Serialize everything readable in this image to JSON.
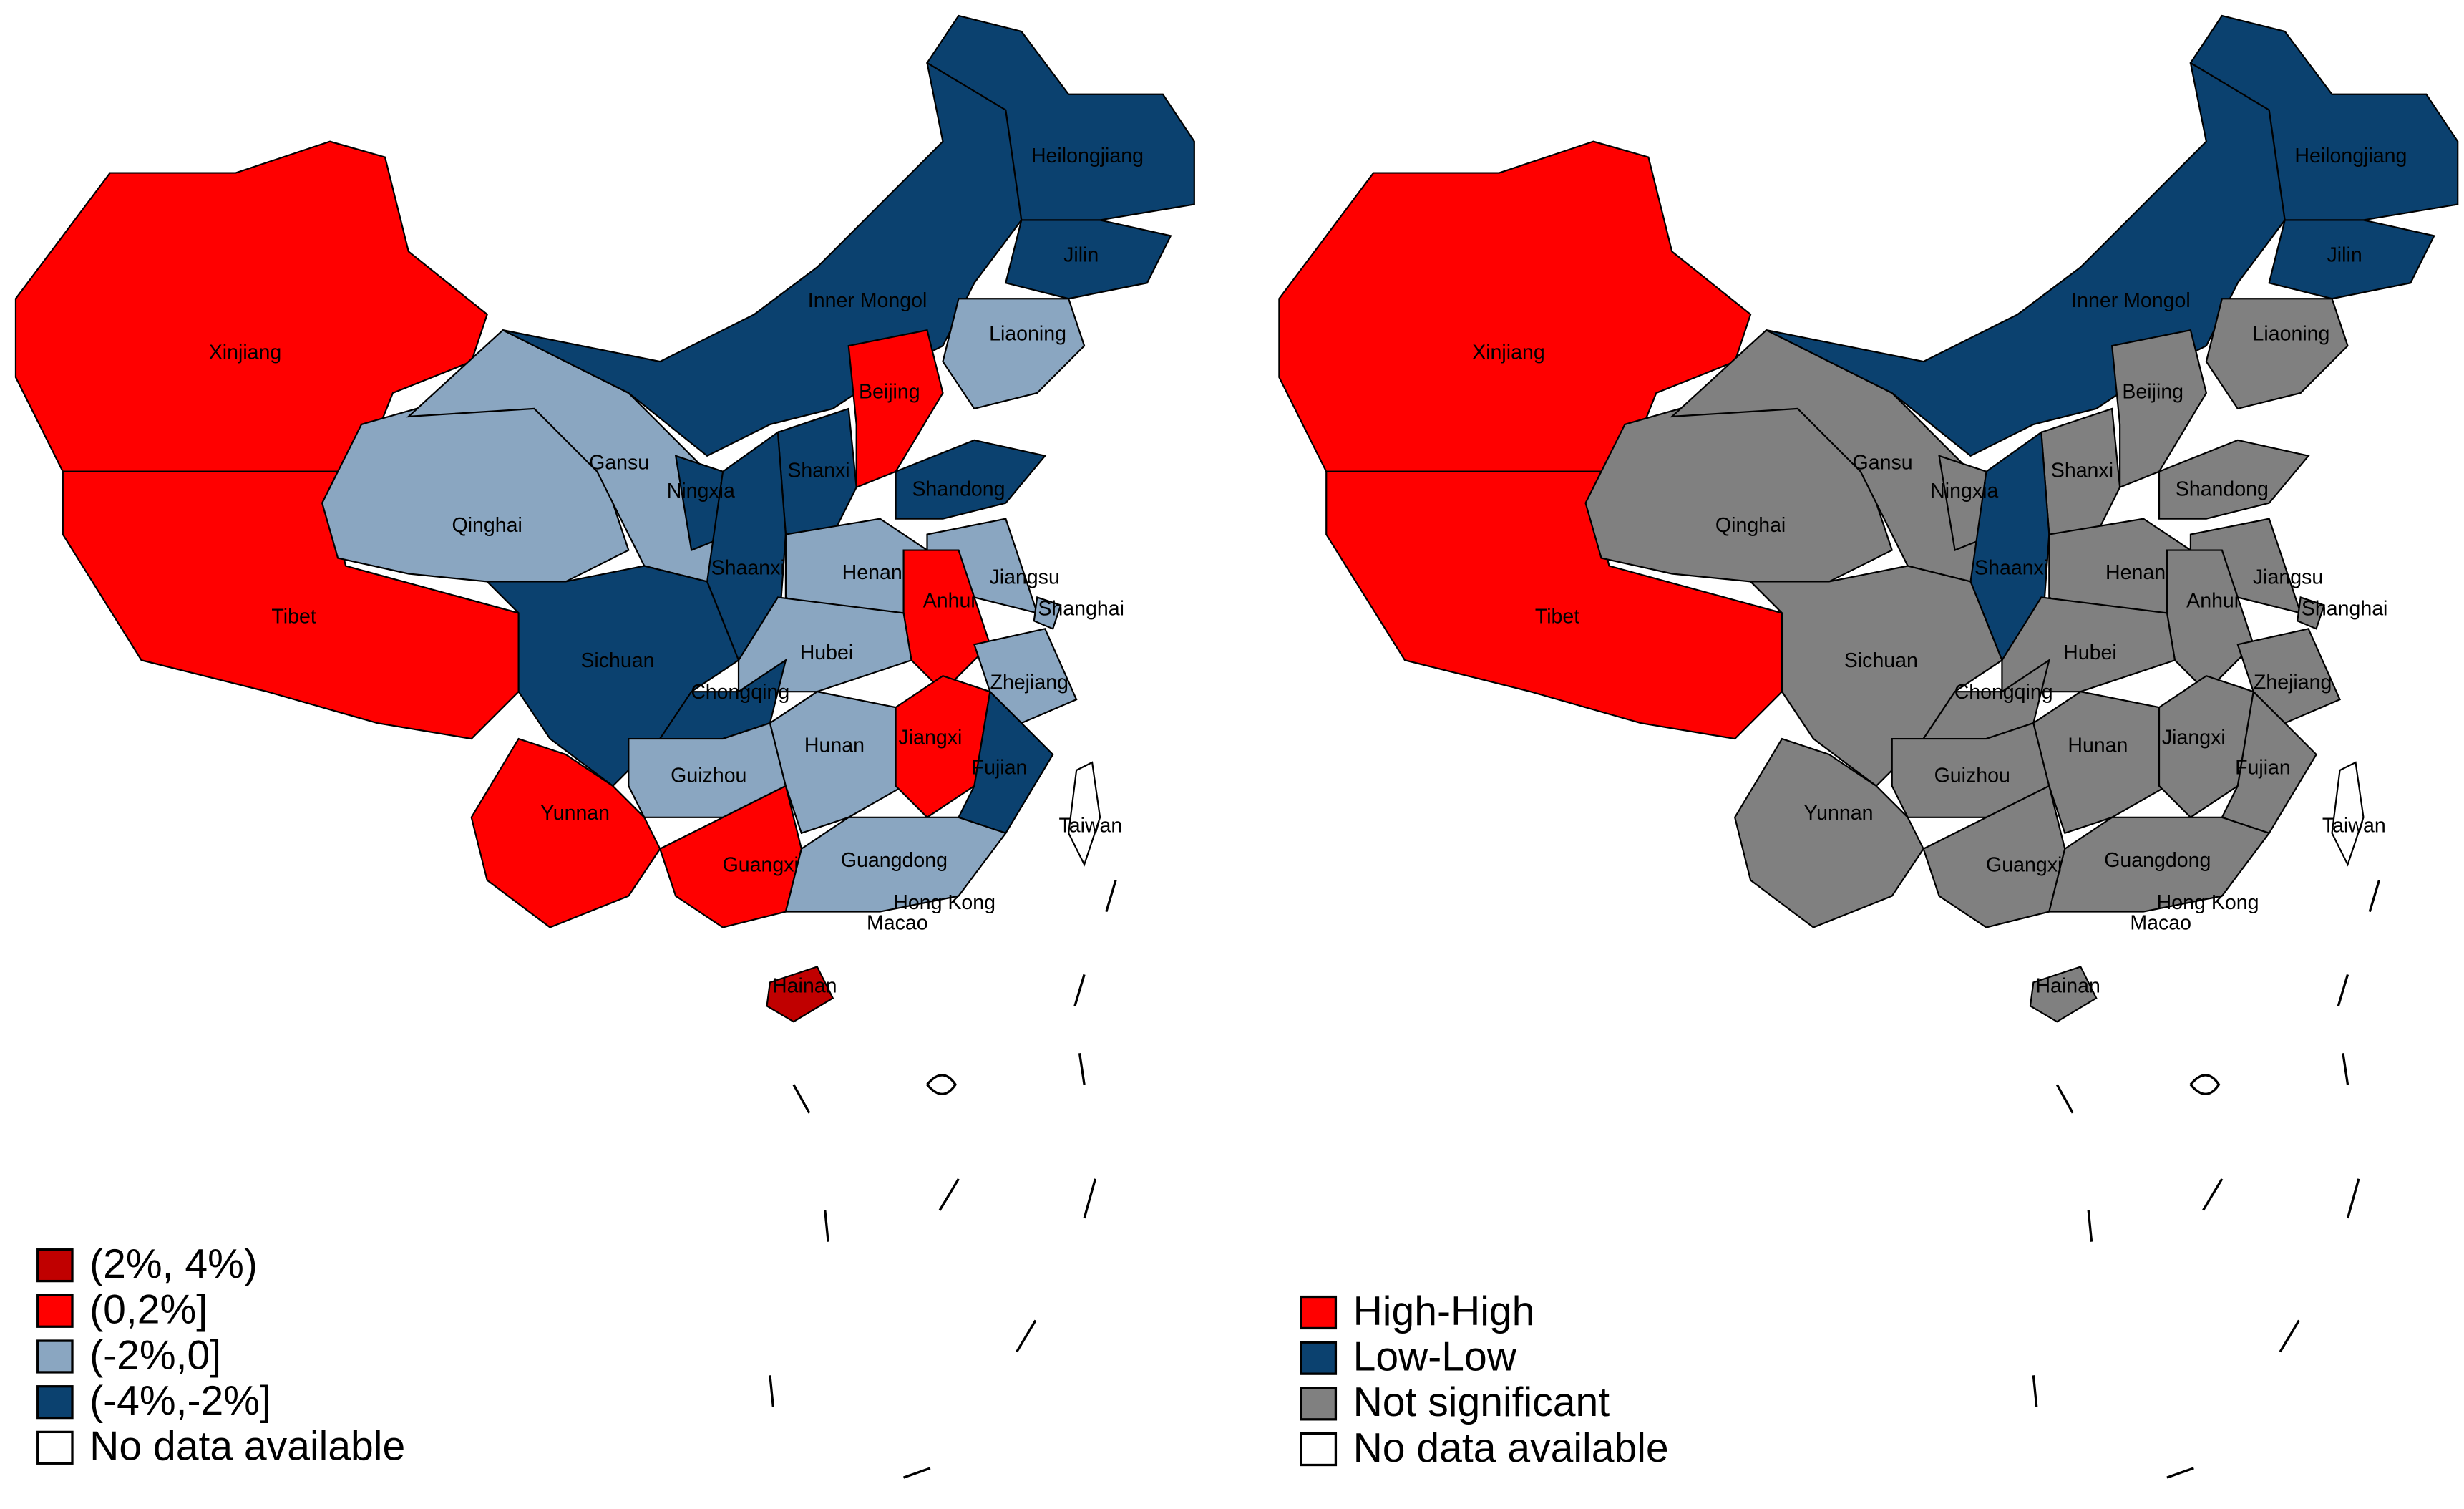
{
  "maps": [
    {
      "regions": [
        {
          "name": "Xinjiang",
          "color": "#ff0000"
        },
        {
          "name": "Tibet",
          "color": "#ff0000"
        },
        {
          "name": "Qinghai",
          "color": "#8aa6c1"
        },
        {
          "name": "Gansu",
          "color": "#8aa6c1"
        },
        {
          "name": "Inner Mongol",
          "color": "#0b416f"
        },
        {
          "name": "Heilongjiang",
          "color": "#0b416f"
        },
        {
          "name": "Jilin",
          "color": "#0b416f"
        },
        {
          "name": "Liaoning",
          "color": "#8aa6c1"
        },
        {
          "name": "Beijing",
          "color": "#ff0000"
        },
        {
          "name": "Shanxi",
          "color": "#0b416f"
        },
        {
          "name": "Shandong",
          "color": "#0b416f"
        },
        {
          "name": "Ningxia",
          "color": "#0b416f"
        },
        {
          "name": "Shaanxi",
          "color": "#0b416f"
        },
        {
          "name": "Henan",
          "color": "#8aa6c1"
        },
        {
          "name": "Jiangsu",
          "color": "#8aa6c1"
        },
        {
          "name": "Anhui",
          "color": "#ff0000"
        },
        {
          "name": "Shanghai",
          "color": "#8aa6c1"
        },
        {
          "name": "Zhejiang",
          "color": "#8aa6c1"
        },
        {
          "name": "Hubei",
          "color": "#8aa6c1"
        },
        {
          "name": "Sichuan",
          "color": "#0b416f"
        },
        {
          "name": "Chongqing",
          "color": "#0b416f"
        },
        {
          "name": "Guizhou",
          "color": "#8aa6c1"
        },
        {
          "name": "Yunnan",
          "color": "#ff0000"
        },
        {
          "name": "Guangxi",
          "color": "#ff0000"
        },
        {
          "name": "Hunan",
          "color": "#8aa6c1"
        },
        {
          "name": "Jiangxi",
          "color": "#ff0000"
        },
        {
          "name": "Fujian",
          "color": "#0b416f"
        },
        {
          "name": "Guangdong",
          "color": "#8aa6c1"
        },
        {
          "name": "Hainan",
          "color": "#c00000"
        },
        {
          "name": "Taiwan",
          "color": "#ffffff"
        }
      ],
      "place_labels": [
        "Hong Kong",
        "Macao"
      ],
      "legend": [
        {
          "label": "(2%, 4%)",
          "color": "#c00000"
        },
        {
          "label": "(0,2%]",
          "color": "#ff0000"
        },
        {
          "label": "(-2%,0]",
          "color": "#8aa6c1"
        },
        {
          "label": "(-4%,-2%]",
          "color": "#0b416f"
        },
        {
          "label": "No data available",
          "color": "#ffffff"
        }
      ]
    },
    {
      "regions": [
        {
          "name": "Xinjiang",
          "color": "#ff0000"
        },
        {
          "name": "Tibet",
          "color": "#ff0000"
        },
        {
          "name": "Qinghai",
          "color": "#808080"
        },
        {
          "name": "Gansu",
          "color": "#808080"
        },
        {
          "name": "Inner Mongol",
          "color": "#0b416f"
        },
        {
          "name": "Heilongjiang",
          "color": "#0b416f"
        },
        {
          "name": "Jilin",
          "color": "#0b416f"
        },
        {
          "name": "Liaoning",
          "color": "#808080"
        },
        {
          "name": "Beijing",
          "color": "#808080"
        },
        {
          "name": "Shanxi",
          "color": "#808080"
        },
        {
          "name": "Shandong",
          "color": "#808080"
        },
        {
          "name": "Ningxia",
          "color": "#808080"
        },
        {
          "name": "Shaanxi",
          "color": "#0b416f"
        },
        {
          "name": "Henan",
          "color": "#808080"
        },
        {
          "name": "Jiangsu",
          "color": "#808080"
        },
        {
          "name": "Anhui",
          "color": "#808080"
        },
        {
          "name": "Shanghai",
          "color": "#808080"
        },
        {
          "name": "Zhejiang",
          "color": "#808080"
        },
        {
          "name": "Hubei",
          "color": "#808080"
        },
        {
          "name": "Sichuan",
          "color": "#808080"
        },
        {
          "name": "Chongqing",
          "color": "#808080"
        },
        {
          "name": "Guizhou",
          "color": "#808080"
        },
        {
          "name": "Yunnan",
          "color": "#808080"
        },
        {
          "name": "Guangxi",
          "color": "#808080"
        },
        {
          "name": "Hunan",
          "color": "#808080"
        },
        {
          "name": "Jiangxi",
          "color": "#808080"
        },
        {
          "name": "Fujian",
          "color": "#808080"
        },
        {
          "name": "Guangdong",
          "color": "#808080"
        },
        {
          "name": "Hainan",
          "color": "#808080"
        },
        {
          "name": "Taiwan",
          "color": "#ffffff"
        }
      ],
      "place_labels": [
        "Hong Kong",
        "Macao"
      ],
      "legend": [
        {
          "label": "High-High",
          "color": "#ff0000"
        },
        {
          "label": "Low-Low",
          "color": "#0b416f"
        },
        {
          "label": "Not significant",
          "color": "#808080"
        },
        {
          "label": "No data available",
          "color": "#ffffff"
        }
      ]
    }
  ]
}
